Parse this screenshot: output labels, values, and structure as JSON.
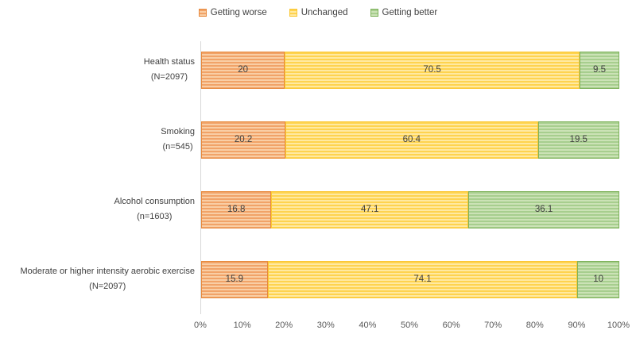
{
  "chart_data": {
    "type": "bar",
    "orientation": "horizontal",
    "stacked": true,
    "pattern": "light-horizontal-stripes",
    "legend_position": "top",
    "grid": false,
    "axis_line_color": "#d9d9d9",
    "value_label_color": "#3f3f3f",
    "tick_label_color": "#595959",
    "category_label_color": "#404040",
    "categories": [
      {
        "label": "Health status",
        "sublabel": "(N=2097)"
      },
      {
        "label": "Smoking",
        "sublabel": "(n=545)"
      },
      {
        "label": "Alcohol consumption",
        "sublabel": "(n=1603)"
      },
      {
        "label": "Moderate or higher intensity aerobic exercise",
        "sublabel": "(N=2097)"
      }
    ],
    "series": [
      {
        "name": "Getting worse",
        "values": [
          20,
          20.2,
          16.8,
          15.9
        ],
        "fill": "#F1A368",
        "stripe": "#F9CEA5",
        "border": "#E78A3E"
      },
      {
        "name": "Unchanged",
        "values": [
          70.5,
          60.4,
          47.1,
          74.1
        ],
        "fill": "#FED34F",
        "stripe": "#FFE9A1",
        "border": "#FBC734"
      },
      {
        "name": "Getting better",
        "values": [
          9.5,
          19.5,
          36.1,
          10
        ],
        "fill": "#A7CE8E",
        "stripe": "#CBE2B6",
        "border": "#7EB25A"
      }
    ],
    "xlim": [
      0,
      100
    ],
    "x_ticks": [
      "0%",
      "10%",
      "20%",
      "30%",
      "40%",
      "50%",
      "60%",
      "70%",
      "80%",
      "90%",
      "100%"
    ],
    "xlabel": "",
    "ylabel": "",
    "title": ""
  }
}
